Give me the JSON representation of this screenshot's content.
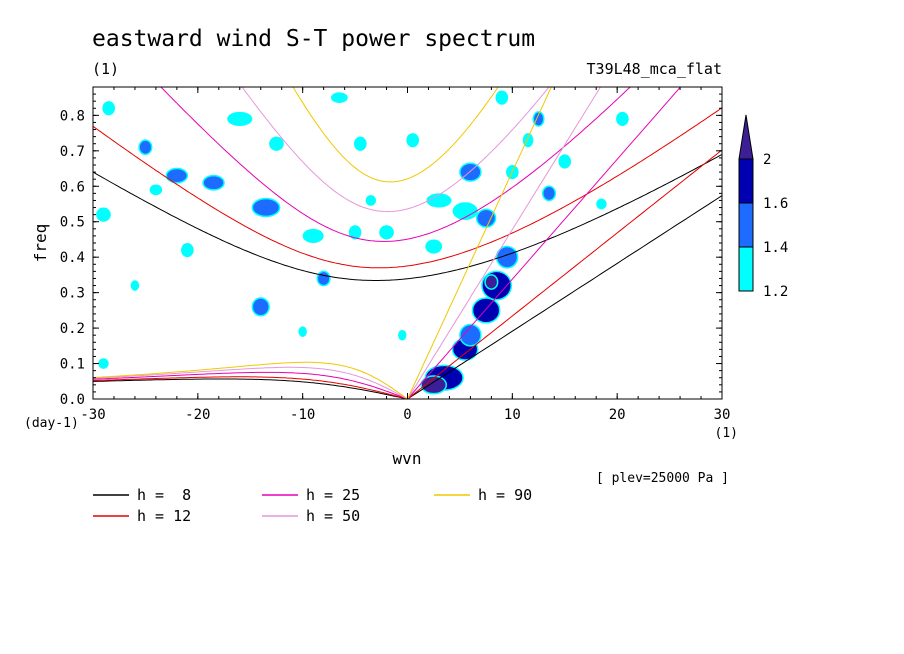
{
  "chart_data": {
    "type": "heatmap",
    "title": "eastward wind S-T power spectrum",
    "subtitle_left": "(1)",
    "subtitle_right": "T39L48_mca_flat",
    "xlabel": "wvn",
    "ylabel": "freq",
    "x_unit": "(1)",
    "y_unit": "(day-1)",
    "xlim": [
      -30,
      30
    ],
    "ylim": [
      0,
      0.88
    ],
    "x_ticks": [
      -30,
      -20,
      -10,
      0,
      10,
      20,
      30
    ],
    "x_tick_labels": [
      "-30",
      "-20",
      "-10",
      "0",
      "10",
      "20",
      "30"
    ],
    "y_ticks": [
      0,
      0.1,
      0.2,
      0.3,
      0.4,
      0.5,
      0.6,
      0.7,
      0.8
    ],
    "y_tick_labels": [
      "0.0",
      "0.1",
      "0.2",
      "0.3",
      "0.4",
      "0.5",
      "0.6",
      "0.7",
      "0.8"
    ],
    "annotation": "[ plev=25000 Pa ]",
    "colorbar": {
      "levels": [
        1.2,
        1.4,
        1.6,
        2
      ],
      "labels": [
        "1.2",
        "1.4",
        "1.6",
        "2"
      ],
      "colors": [
        "#00ffff",
        "#1e6cff",
        "#0000b0",
        "#3c1e96"
      ]
    },
    "curves": [
      {
        "name": "h =  8",
        "h": 8,
        "color": "#000000"
      },
      {
        "name": "h = 12",
        "h": 12,
        "color": "#e60000"
      },
      {
        "name": "h = 25",
        "h": 25,
        "color": "#e600b4"
      },
      {
        "name": "h = 50",
        "h": 50,
        "color": "#e696dc"
      },
      {
        "name": "h = 90",
        "h": 90,
        "color": "#f0c800"
      }
    ],
    "patches": [
      {
        "x": 3.5,
        "y": 0.06,
        "rx": 1.8,
        "ry": 0.035,
        "level": 3
      },
      {
        "x": 2.5,
        "y": 0.04,
        "rx": 1.2,
        "ry": 0.025,
        "level": 4
      },
      {
        "x": 5.5,
        "y": 0.14,
        "rx": 1.2,
        "ry": 0.03,
        "level": 3
      },
      {
        "x": 7.5,
        "y": 0.25,
        "rx": 1.3,
        "ry": 0.035,
        "level": 3
      },
      {
        "x": 8.5,
        "y": 0.32,
        "rx": 1.4,
        "ry": 0.04,
        "level": 3
      },
      {
        "x": 8.0,
        "y": 0.33,
        "rx": 0.6,
        "ry": 0.02,
        "level": 4
      },
      {
        "x": 6.0,
        "y": 0.18,
        "rx": 1.0,
        "ry": 0.03,
        "level": 2
      },
      {
        "x": 9.5,
        "y": 0.4,
        "rx": 1.0,
        "ry": 0.03,
        "level": 2
      },
      {
        "x": 6.0,
        "y": 0.64,
        "rx": 1.0,
        "ry": 0.025,
        "level": 2
      },
      {
        "x": 7.5,
        "y": 0.51,
        "rx": 0.9,
        "ry": 0.025,
        "level": 2
      },
      {
        "x": 5.5,
        "y": 0.53,
        "rx": 1.2,
        "ry": 0.025,
        "level": 1
      },
      {
        "x": -13.5,
        "y": 0.54,
        "rx": 1.3,
        "ry": 0.025,
        "level": 2
      },
      {
        "x": -22.0,
        "y": 0.63,
        "rx": 1.0,
        "ry": 0.02,
        "level": 2
      },
      {
        "x": -18.5,
        "y": 0.61,
        "rx": 1.0,
        "ry": 0.02,
        "level": 2
      },
      {
        "x": -25.0,
        "y": 0.71,
        "rx": 0.6,
        "ry": 0.02,
        "level": 2
      },
      {
        "x": -8.0,
        "y": 0.34,
        "rx": 0.6,
        "ry": 0.02,
        "level": 2
      },
      {
        "x": -14.0,
        "y": 0.26,
        "rx": 0.8,
        "ry": 0.025,
        "level": 2
      },
      {
        "x": 12.5,
        "y": 0.79,
        "rx": 0.5,
        "ry": 0.02,
        "level": 2
      },
      {
        "x": 13.5,
        "y": 0.58,
        "rx": 0.6,
        "ry": 0.02,
        "level": 2
      },
      {
        "x": 10.0,
        "y": 0.64,
        "rx": 0.6,
        "ry": 0.02,
        "level": 1
      },
      {
        "x": 20.5,
        "y": 0.79,
        "rx": 0.6,
        "ry": 0.02,
        "level": 1
      },
      {
        "x": -9.0,
        "y": 0.46,
        "rx": 1.0,
        "ry": 0.02,
        "level": 1
      },
      {
        "x": -5.0,
        "y": 0.47,
        "rx": 0.6,
        "ry": 0.02,
        "level": 1
      },
      {
        "x": 3.0,
        "y": 0.56,
        "rx": 1.2,
        "ry": 0.02,
        "level": 1
      },
      {
        "x": 2.5,
        "y": 0.43,
        "rx": 0.8,
        "ry": 0.02,
        "level": 1
      },
      {
        "x": -2.0,
        "y": 0.47,
        "rx": 0.7,
        "ry": 0.02,
        "level": 1
      },
      {
        "x": -16.0,
        "y": 0.79,
        "rx": 1.2,
        "ry": 0.02,
        "level": 1
      },
      {
        "x": -28.5,
        "y": 0.82,
        "rx": 0.6,
        "ry": 0.02,
        "level": 1
      },
      {
        "x": -6.5,
        "y": 0.85,
        "rx": 0.8,
        "ry": 0.015,
        "level": 1
      },
      {
        "x": 11.5,
        "y": 0.73,
        "rx": 0.5,
        "ry": 0.02,
        "level": 1
      },
      {
        "x": 15.0,
        "y": 0.67,
        "rx": 0.6,
        "ry": 0.02,
        "level": 1
      },
      {
        "x": -21.0,
        "y": 0.42,
        "rx": 0.6,
        "ry": 0.02,
        "level": 1
      },
      {
        "x": -29.0,
        "y": 0.52,
        "rx": 0.7,
        "ry": 0.02,
        "level": 1
      },
      {
        "x": -26.0,
        "y": 0.32,
        "rx": 0.4,
        "ry": 0.015,
        "level": 1
      },
      {
        "x": -29.0,
        "y": 0.1,
        "rx": 0.5,
        "ry": 0.015,
        "level": 1
      },
      {
        "x": -10.0,
        "y": 0.19,
        "rx": 0.4,
        "ry": 0.015,
        "level": 1
      },
      {
        "x": -4.5,
        "y": 0.72,
        "rx": 0.6,
        "ry": 0.02,
        "level": 1
      },
      {
        "x": -0.5,
        "y": 0.18,
        "rx": 0.4,
        "ry": 0.015,
        "level": 1
      },
      {
        "x": 9.0,
        "y": 0.85,
        "rx": 0.6,
        "ry": 0.02,
        "level": 1
      },
      {
        "x": 18.5,
        "y": 0.55,
        "rx": 0.5,
        "ry": 0.015,
        "level": 1
      },
      {
        "x": -12.5,
        "y": 0.72,
        "rx": 0.7,
        "ry": 0.02,
        "level": 1
      },
      {
        "x": -3.5,
        "y": 0.56,
        "rx": 0.5,
        "ry": 0.015,
        "level": 1
      },
      {
        "x": 0.5,
        "y": 0.73,
        "rx": 0.6,
        "ry": 0.02,
        "level": 1
      },
      {
        "x": -24.0,
        "y": 0.59,
        "rx": 0.6,
        "ry": 0.015,
        "level": 1
      }
    ]
  }
}
